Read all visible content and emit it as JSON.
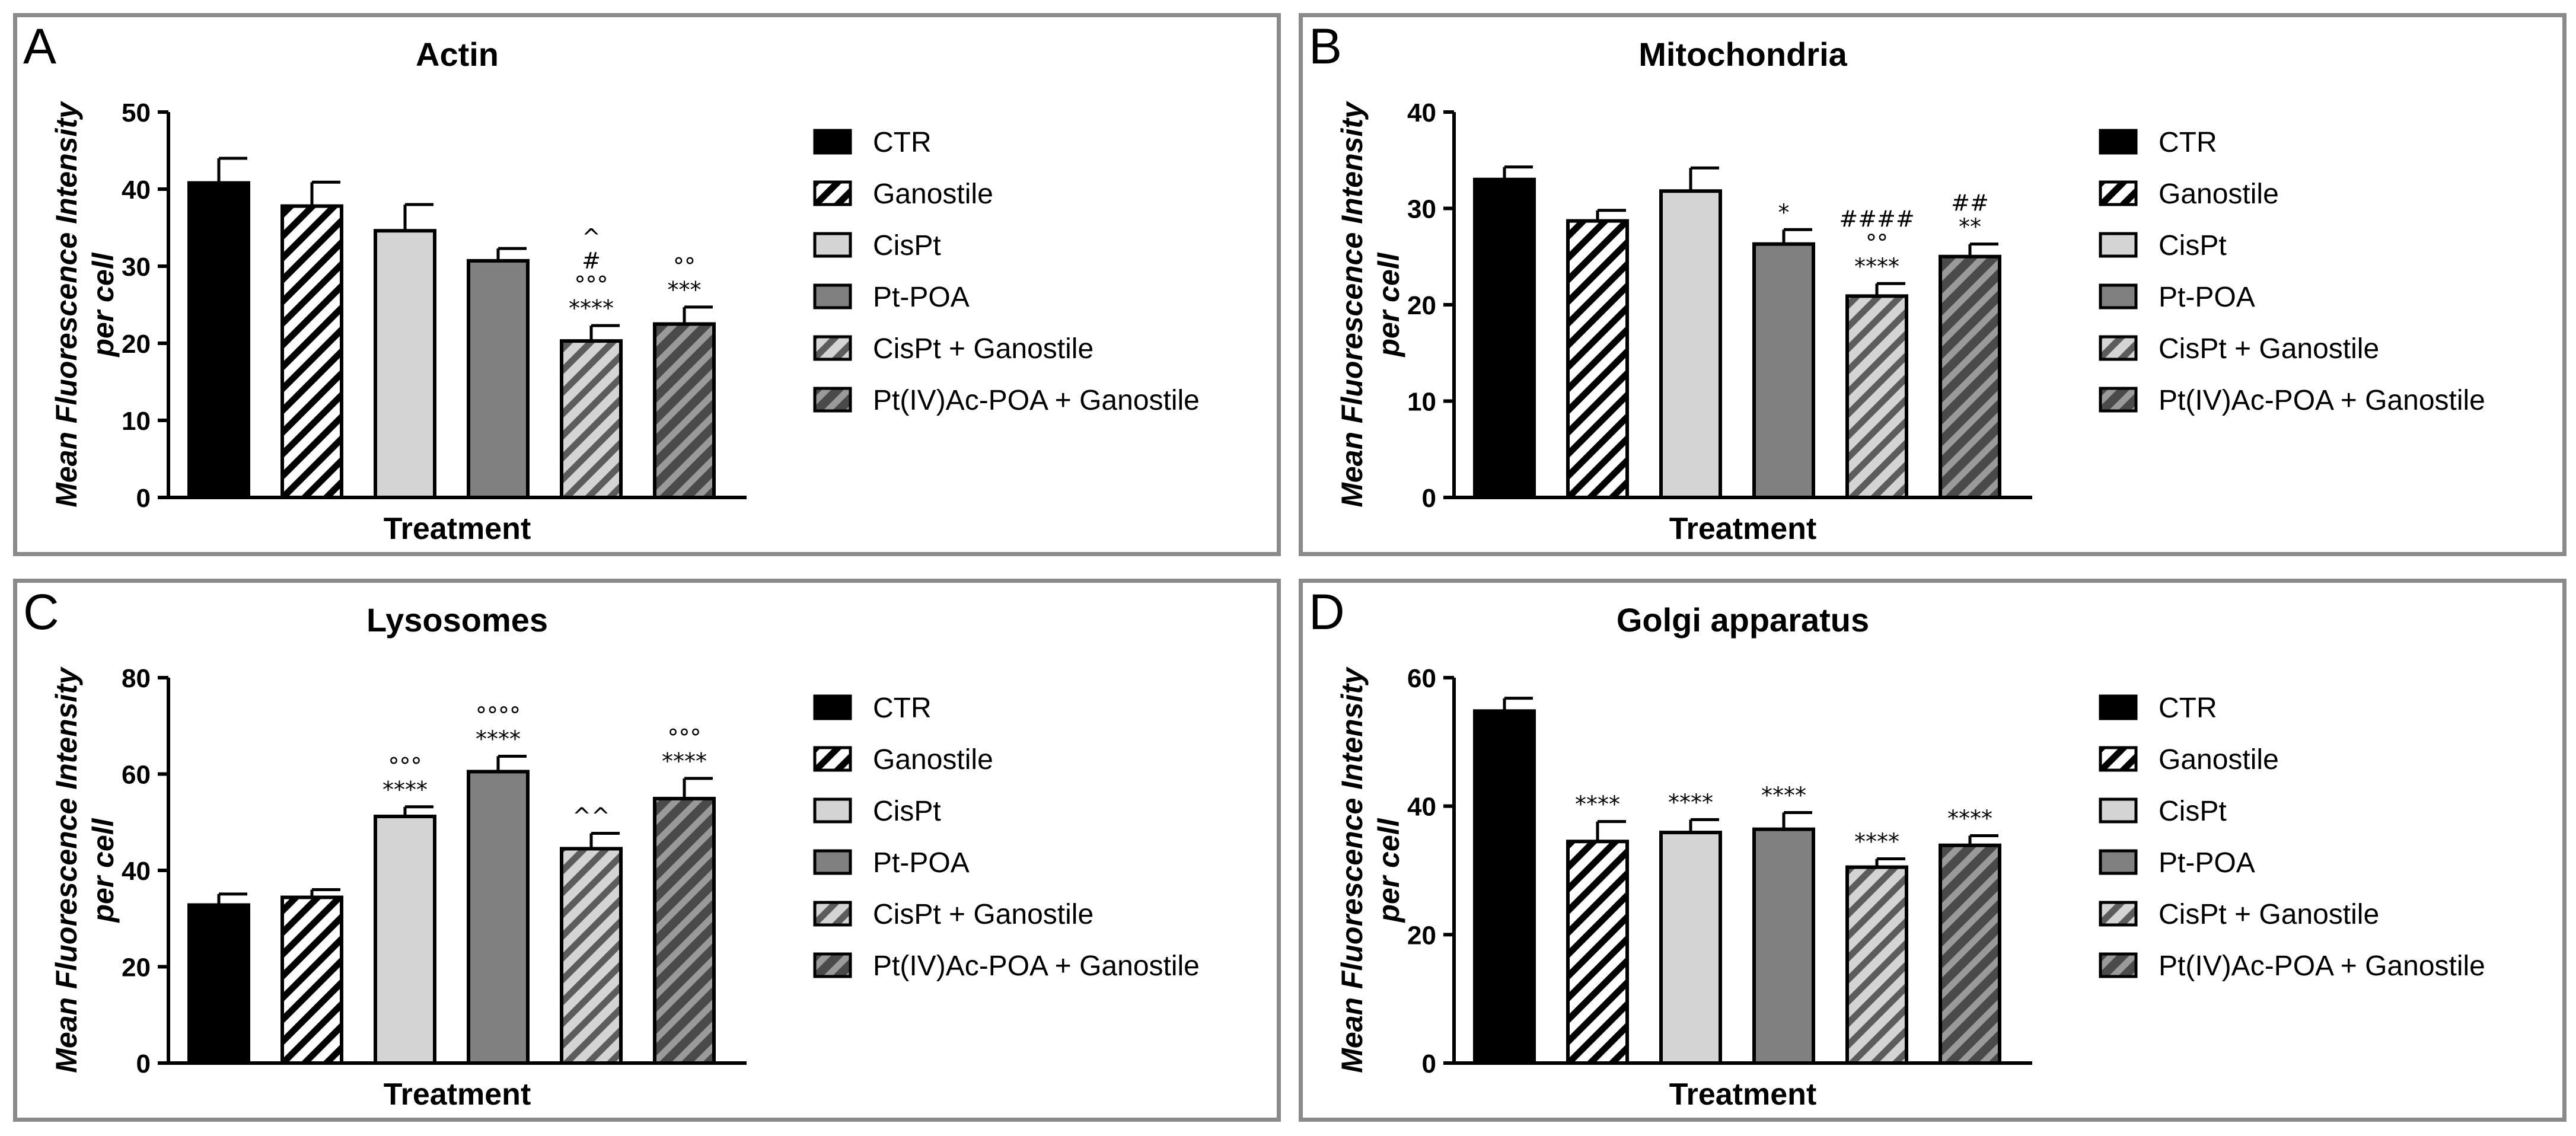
{
  "series_names": [
    "CTR",
    "Ganostile",
    "CisPt",
    "Pt-POA",
    "CisPt + Ganostile",
    "Pt(IV)Ac-POA + Ganostile"
  ],
  "series_styles": [
    {
      "fill": "#000000",
      "hatch": false
    },
    {
      "fill": "#ffffff",
      "hatch": true,
      "stripe": "#000000"
    },
    {
      "fill": "#d4d4d4",
      "hatch": false
    },
    {
      "fill": "#808080",
      "hatch": false
    },
    {
      "fill": "#d4d4d4",
      "hatch": true,
      "stripe": "#5c5c5c"
    },
    {
      "fill": "#4a4a4a",
      "hatch": true,
      "stripe": "#9a9a9a"
    }
  ],
  "chart_data": [
    {
      "panel": "A",
      "type": "bar",
      "title": "Actin",
      "xlabel": "Treatment",
      "ylabel": "Mean Fluorescence Intensity per cell",
      "ylabel_lines": [
        "Mean Fluorescence Intensity",
        "per cell"
      ],
      "ylim": [
        0,
        50
      ],
      "yticks": [
        0,
        10,
        20,
        30,
        40,
        50
      ],
      "categories": [
        "CTR",
        "Ganostile",
        "CisPt",
        "Pt-POA",
        "CisPt + Ganostile",
        "Pt(IV)Ac-POA + Ganostile"
      ],
      "values": [
        40.8,
        37.8,
        34.6,
        30.7,
        20.3,
        22.5
      ],
      "errors": [
        3.2,
        3.1,
        3.4,
        1.6,
        2.0,
        2.2
      ],
      "annotations": [
        [],
        [],
        [],
        [],
        [
          "^",
          "#",
          "°°°",
          "****"
        ],
        [
          "°°",
          "***"
        ]
      ],
      "legend": [
        "CTR",
        "Ganostile",
        "CisPt",
        "Pt-POA",
        "CisPt + Ganostile",
        "Pt(IV)Ac-POA + Ganostile"
      ]
    },
    {
      "panel": "B",
      "type": "bar",
      "title": "Mitochondria",
      "xlabel": "Treatment",
      "ylabel": "Mean Fluorescence Intensity per cell",
      "ylabel_lines": [
        "Mean Fluorescence Intensity",
        "per cell"
      ],
      "ylim": [
        0,
        40
      ],
      "yticks": [
        0,
        10,
        20,
        30,
        40
      ],
      "categories": [
        "CTR",
        "Ganostile",
        "CisPt",
        "Pt-POA",
        "CisPt + Ganostile",
        "Pt(IV)Ac-POA + Ganostile"
      ],
      "values": [
        33.0,
        28.7,
        31.8,
        26.3,
        20.9,
        25.0
      ],
      "errors": [
        1.3,
        1.1,
        2.4,
        1.5,
        1.3,
        1.3
      ],
      "annotations": [
        [],
        [],
        [],
        [
          "*"
        ],
        [
          "####",
          "°°",
          "****"
        ],
        [
          "##",
          "**"
        ]
      ],
      "legend": [
        "CTR",
        "Ganostile",
        "CisPt",
        "Pt-POA",
        "CisPt + Ganostile",
        "Pt(IV)Ac-POA + Ganostile"
      ]
    },
    {
      "panel": "C",
      "type": "bar",
      "title": "Lysosomes",
      "xlabel": "Treatment",
      "ylabel": "Mean Fluorescence Intensity per cell",
      "ylabel_lines": [
        "Mean Fluorescence Intensity",
        "per cell"
      ],
      "ylim": [
        0,
        80
      ],
      "yticks": [
        0,
        20,
        40,
        60,
        80
      ],
      "categories": [
        "CTR",
        "Ganostile",
        "CisPt",
        "Pt-POA",
        "CisPt + Ganostile",
        "Pt(IV)Ac-POA + Ganostile"
      ],
      "values": [
        32.8,
        34.4,
        51.2,
        60.5,
        44.5,
        54.9
      ],
      "errors": [
        2.3,
        1.6,
        2.0,
        3.2,
        3.2,
        4.2
      ],
      "annotations": [
        [],
        [],
        [
          "°°°",
          "****"
        ],
        [
          "°°°°",
          "****"
        ],
        [
          "^^"
        ],
        [
          "°°°",
          "****"
        ]
      ],
      "legend": [
        "CTR",
        "Ganostile",
        "CisPt",
        "Pt-POA",
        "CisPt + Ganostile",
        "Pt(IV)Ac-POA + Ganostile"
      ]
    },
    {
      "panel": "D",
      "type": "bar",
      "title": "Golgi apparatus",
      "xlabel": "Treatment",
      "ylabel": "Mean Fluorescence Intensity per cell",
      "ylabel_lines": [
        "Mean Fluorescence Intensity",
        "per cell"
      ],
      "ylim": [
        0,
        60
      ],
      "yticks": [
        0,
        20,
        40,
        60
      ],
      "categories": [
        "CTR",
        "Ganostile",
        "CisPt",
        "Pt-POA",
        "CisPt + Ganostile",
        "Pt(IV)Ac-POA + Ganostile"
      ],
      "values": [
        54.8,
        34.5,
        35.9,
        36.4,
        30.5,
        33.9
      ],
      "errors": [
        2.0,
        3.1,
        2.0,
        2.6,
        1.3,
        1.5
      ],
      "annotations": [
        [],
        [
          "****"
        ],
        [
          "****"
        ],
        [
          "****"
        ],
        [
          "****"
        ],
        [
          "****"
        ]
      ],
      "legend": [
        "CTR",
        "Ganostile",
        "CisPt",
        "Pt-POA",
        "CisPt + Ganostile",
        "Pt(IV)Ac-POA + Ganostile"
      ]
    }
  ]
}
